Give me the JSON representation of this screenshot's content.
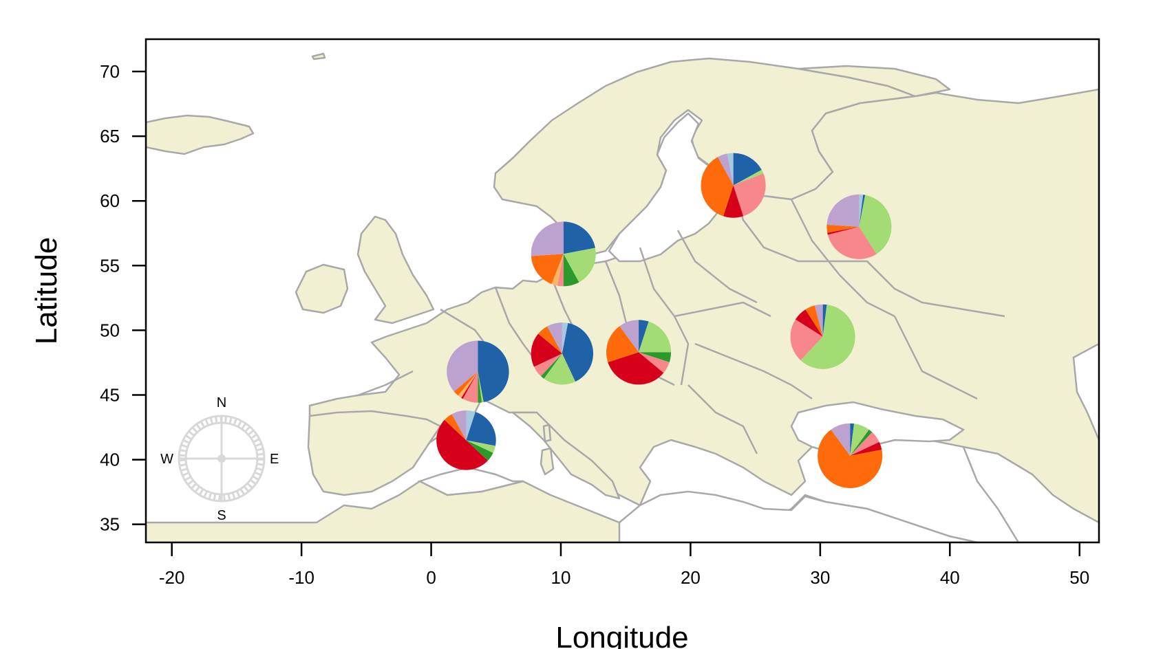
{
  "chart_data": {
    "type": "pie",
    "xlabel": "Longitude",
    "ylabel": "Latitude",
    "xlim": [
      -22,
      51.5
    ],
    "ylim": [
      33.6,
      72.5
    ],
    "xticks": [
      -20,
      -10,
      0,
      10,
      20,
      30,
      40,
      50
    ],
    "yticks": [
      35,
      40,
      45,
      50,
      55,
      60,
      65,
      70
    ],
    "xtick_labels": [
      "-20",
      "-10",
      "0",
      "10",
      "20",
      "30",
      "40",
      "50"
    ],
    "ytick_labels": [
      "35",
      "40",
      "45",
      "50",
      "55",
      "60",
      "65",
      "70"
    ],
    "grid": false,
    "legend": "none",
    "compass": {
      "n": "N",
      "s": "S",
      "e": "E",
      "w": "W"
    },
    "colors": {
      "blue": "#1f62a8",
      "light_blue": "#a6c8e0",
      "lavender": "#bca2cf",
      "orange": "#ff6a0a",
      "light_orange": "#fdb462",
      "red": "#d7001b",
      "pink": "#f7878b",
      "green": "#2a9a2d",
      "light_green": "#a3db74"
    },
    "pies": [
      {
        "lon": 2.7,
        "lat": 41.5,
        "radius_deg": 2.3,
        "slices": [
          {
            "color": "light_blue",
            "value": 5
          },
          {
            "color": "blue",
            "value": 23
          },
          {
            "color": "light_green",
            "value": 4
          },
          {
            "color": "green",
            "value": 5
          },
          {
            "color": "red",
            "value": 50
          },
          {
            "color": "orange",
            "value": 5
          },
          {
            "color": "lavender",
            "value": 8
          }
        ]
      },
      {
        "lon": 3.6,
        "lat": 46.8,
        "radius_deg": 2.4,
        "slices": [
          {
            "color": "blue",
            "value": 47
          },
          {
            "color": "light_green",
            "value": 1
          },
          {
            "color": "green",
            "value": 2
          },
          {
            "color": "pink",
            "value": 8
          },
          {
            "color": "red",
            "value": 1
          },
          {
            "color": "light_orange",
            "value": 2
          },
          {
            "color": "orange",
            "value": 3
          },
          {
            "color": "lavender",
            "value": 36
          }
        ]
      },
      {
        "lon": 10.1,
        "lat": 48.2,
        "radius_deg": 2.4,
        "slices": [
          {
            "color": "light_blue",
            "value": 3
          },
          {
            "color": "blue",
            "value": 40
          },
          {
            "color": "light_green",
            "value": 17
          },
          {
            "color": "green",
            "value": 2
          },
          {
            "color": "pink",
            "value": 6
          },
          {
            "color": "red",
            "value": 18
          },
          {
            "color": "orange",
            "value": 6
          },
          {
            "color": "lavender",
            "value": 8
          }
        ]
      },
      {
        "lon": 10.2,
        "lat": 55.9,
        "radius_deg": 2.5,
        "slices": [
          {
            "color": "blue",
            "value": 22
          },
          {
            "color": "light_green",
            "value": 20
          },
          {
            "color": "green",
            "value": 8
          },
          {
            "color": "pink",
            "value": 3
          },
          {
            "color": "light_orange",
            "value": 3
          },
          {
            "color": "orange",
            "value": 18
          },
          {
            "color": "lavender",
            "value": 26
          }
        ]
      },
      {
        "lon": 16.0,
        "lat": 48.3,
        "radius_deg": 2.5,
        "slices": [
          {
            "color": "blue",
            "value": 5
          },
          {
            "color": "light_green",
            "value": 20
          },
          {
            "color": "green",
            "value": 5
          },
          {
            "color": "pink",
            "value": 6
          },
          {
            "color": "red",
            "value": 34
          },
          {
            "color": "orange",
            "value": 20
          },
          {
            "color": "lavender",
            "value": 10
          }
        ]
      },
      {
        "lon": 23.3,
        "lat": 61.2,
        "radius_deg": 2.5,
        "slices": [
          {
            "color": "blue",
            "value": 17
          },
          {
            "color": "light_green",
            "value": 2
          },
          {
            "color": "pink",
            "value": 26
          },
          {
            "color": "red",
            "value": 10
          },
          {
            "color": "orange",
            "value": 37
          },
          {
            "color": "lavender",
            "value": 5
          },
          {
            "color": "light_blue",
            "value": 3
          }
        ]
      },
      {
        "lon": 33.0,
        "lat": 58.0,
        "radius_deg": 2.5,
        "slices": [
          {
            "color": "light_blue",
            "value": 2
          },
          {
            "color": "blue",
            "value": 1
          },
          {
            "color": "light_green",
            "value": 38
          },
          {
            "color": "pink",
            "value": 30
          },
          {
            "color": "red",
            "value": 1
          },
          {
            "color": "orange",
            "value": 4
          },
          {
            "color": "lavender",
            "value": 24
          }
        ]
      },
      {
        "lon": 30.2,
        "lat": 49.5,
        "radius_deg": 2.5,
        "slices": [
          {
            "color": "blue",
            "value": 2
          },
          {
            "color": "light_green",
            "value": 60
          },
          {
            "color": "pink",
            "value": 22
          },
          {
            "color": "red",
            "value": 7
          },
          {
            "color": "orange",
            "value": 5
          },
          {
            "color": "lavender",
            "value": 4
          }
        ]
      },
      {
        "lon": 32.3,
        "lat": 40.3,
        "radius_deg": 2.5,
        "slices": [
          {
            "color": "blue",
            "value": 2
          },
          {
            "color": "light_green",
            "value": 8
          },
          {
            "color": "green",
            "value": 2
          },
          {
            "color": "pink",
            "value": 6
          },
          {
            "color": "red",
            "value": 4
          },
          {
            "color": "orange",
            "value": 68
          },
          {
            "color": "lavender",
            "value": 10
          }
        ]
      }
    ]
  }
}
